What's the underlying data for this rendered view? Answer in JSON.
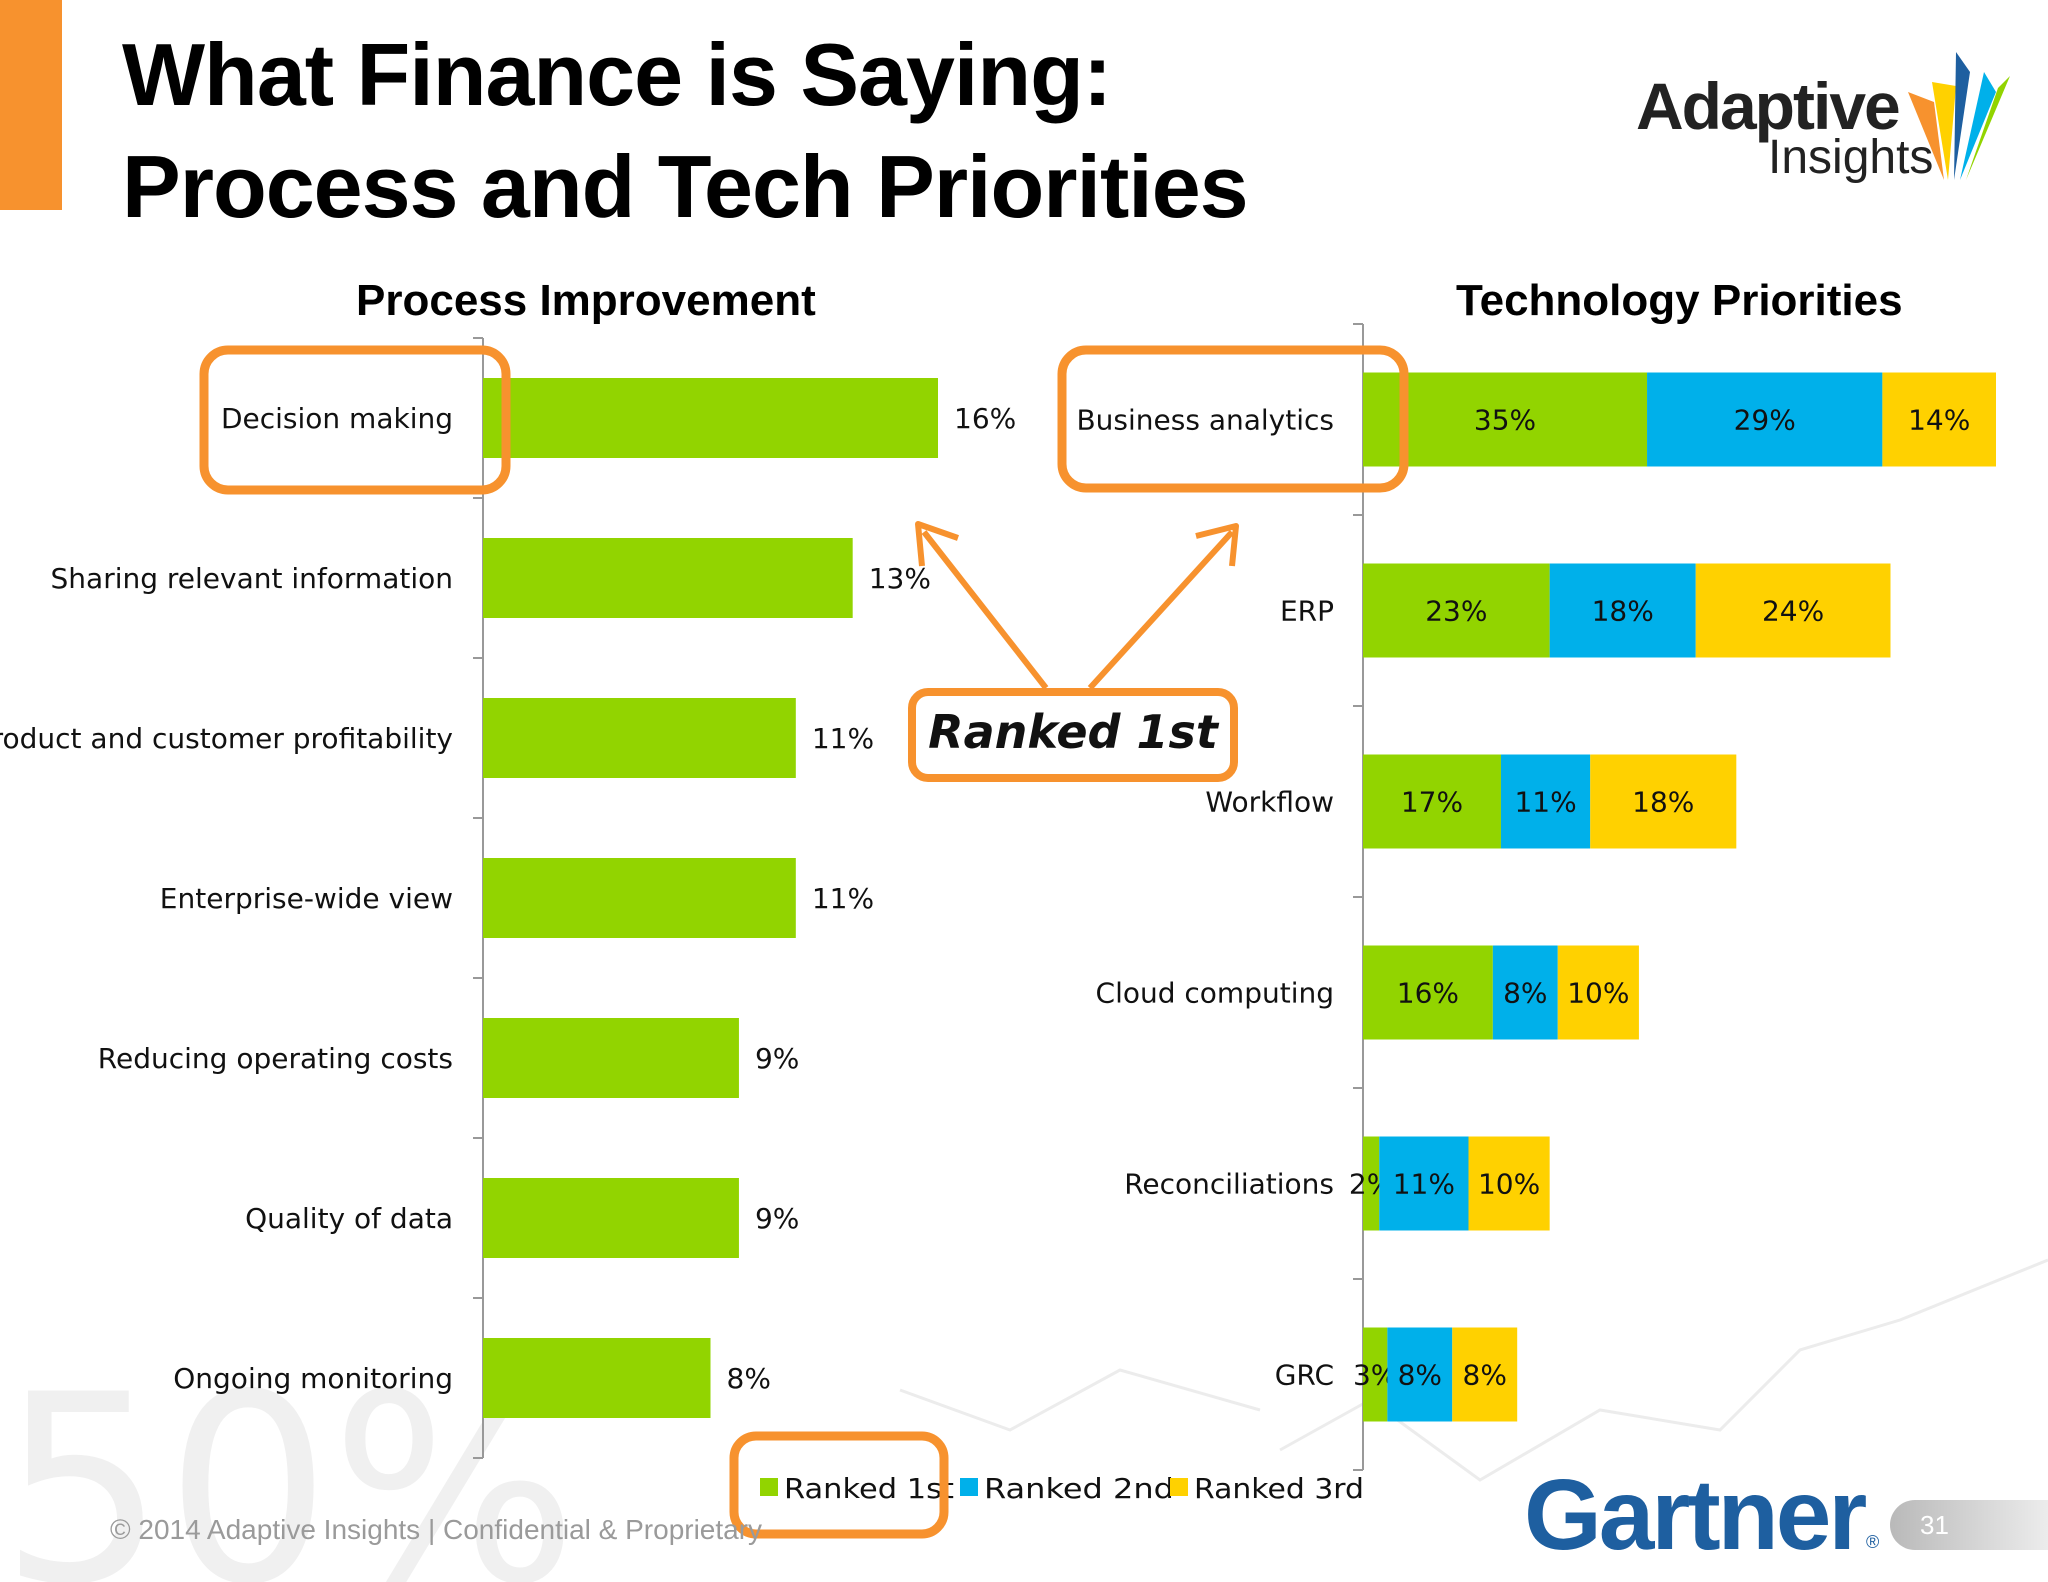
{
  "slide": {
    "title_line1": "What Finance is Saying:",
    "title_line2": "Process and Tech Priorities",
    "logo_top": "Adaptive",
    "logo_bottom": "Insights",
    "gartner": "Gartner",
    "gartner_mark": "®",
    "footer": "© 2014 Adaptive Insights  |  Confidential & Proprietary",
    "page_number": "31",
    "callout": "Ranked 1st",
    "accent_color": "#F7922E"
  },
  "chart_data": [
    {
      "type": "bar",
      "orientation": "horizontal",
      "title": "Process Improvement",
      "categories": [
        "Decision making",
        "Sharing relevant information",
        "Product and customer profitability",
        "Enterprise-wide view",
        "Reducing operating costs",
        "Quality of data",
        "Ongoing monitoring"
      ],
      "values": [
        16,
        13,
        11,
        11,
        9,
        9,
        8
      ],
      "value_labels": [
        "16%",
        "13%",
        "11%",
        "11%",
        "9%",
        "9%",
        "8%"
      ],
      "color": "#92D400",
      "xlim": [
        0,
        16
      ]
    },
    {
      "type": "bar",
      "orientation": "horizontal",
      "stacked": true,
      "title": "Technology Priorities",
      "categories": [
        "Business analytics",
        "ERP",
        "Workflow",
        "Cloud computing",
        "Reconciliations",
        "GRC"
      ],
      "series": [
        {
          "name": "Ranked 1st",
          "color": "#92D400",
          "values": [
            35,
            23,
            17,
            16,
            2,
            3
          ],
          "labels": [
            "35%",
            "23%",
            "17%",
            "16%",
            "2%",
            "3%"
          ]
        },
        {
          "name": "Ranked 2nd",
          "color": "#00B0EA",
          "values": [
            29,
            18,
            11,
            8,
            11,
            8
          ],
          "labels": [
            "29%",
            "18%",
            "11%",
            "8%",
            "11%",
            "8%"
          ]
        },
        {
          "name": "Ranked 3rd",
          "color": "#FFD100",
          "values": [
            14,
            24,
            18,
            10,
            10,
            8
          ],
          "labels": [
            "14%",
            "24%",
            "18%",
            "10%",
            "10%",
            "8%"
          ]
        }
      ],
      "legend": "bottom"
    }
  ]
}
